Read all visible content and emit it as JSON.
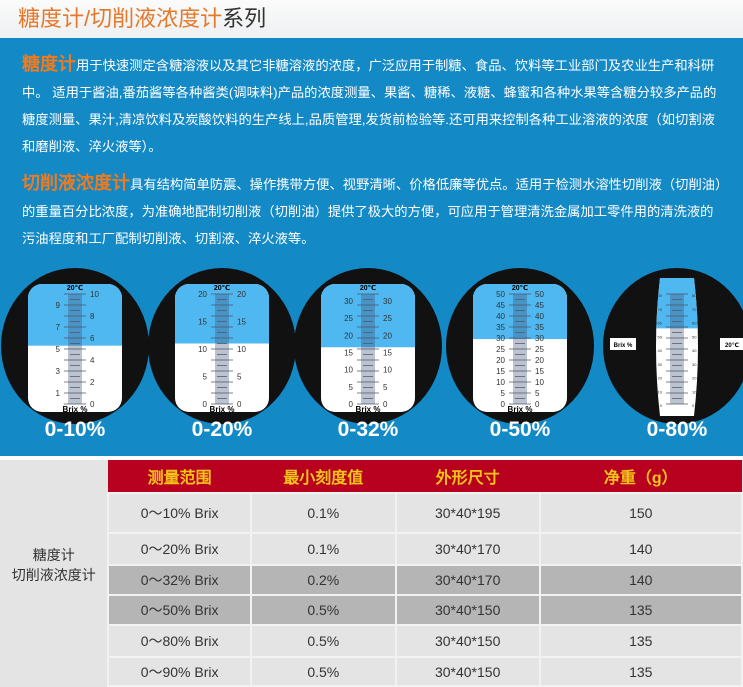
{
  "title": {
    "accent": "糖度计/切削液浓度计",
    "rest": "系列"
  },
  "intro": [
    {
      "heading": "糖度计",
      "text": "用于快速测定含糖溶液以及其它非糖溶液的浓度，广泛应用于制糖、食品、饮料等工业部门及农业生产和科研中。 适用于酱油,番茄酱等各种酱类(调味料)产品的浓度测量、果酱、糖稀、液糖、蜂蜜和各种水果等含糖分较多产品的糖度测量、果汁,清凉饮料及炭酸饮料的生产线上,品质管理,发货前检验等.还可用来控制各种工业溶液的浓度（如切割液和磨削液、淬火液等）。"
    },
    {
      "heading": "切削液浓度计",
      "text": "具有结构简单防震、操作携带方便、视野清晰、价格低廉等优点。适用于检测水溶性切削液（切削油）的重量百分比浓度，为准确地配制切削液（切削油）提供了极大的方便，可应用于管理清洗金属加工零件用的清洗液的污油程度和工厂配制切削液、切割液、淬火液等。"
    }
  ],
  "colors": {
    "blue_bg": "#1389c6",
    "accent": "#e5782a",
    "table_header": "#b8001f",
    "header_text": "#f5c518",
    "field_blue": "#4fb8f0"
  },
  "gauges": [
    {
      "range_label": "0-10%",
      "temp": "20℃",
      "unit": "Brix %",
      "max": 10,
      "left": [
        "9",
        "7",
        "5",
        "3",
        "1"
      ],
      "right": [
        "10",
        "8",
        "6",
        "4",
        "2",
        "0"
      ],
      "boundary": 5.3
    },
    {
      "range_label": "0-20%",
      "temp": "20℃",
      "unit": "Brix %",
      "max": 20,
      "left": [
        "20",
        "15",
        "10",
        "5",
        "0"
      ],
      "right": [
        "20",
        "15",
        "10",
        "5",
        "0"
      ],
      "boundary": 11
    },
    {
      "range_label": "0-32%",
      "temp": "20℃",
      "unit": "Brix %",
      "max": 32,
      "left": [
        "30",
        "25",
        "20",
        "15",
        "10",
        "5",
        "0"
      ],
      "right": [
        "30",
        "25",
        "20",
        "15",
        "10",
        "5",
        "0"
      ],
      "boundary": 16.5
    },
    {
      "range_label": "0-50%",
      "temp": "20℃",
      "unit": "Brix %",
      "max": 50,
      "left": [
        "50",
        "45",
        "40",
        "35",
        "30",
        "25",
        "20",
        "15",
        "10",
        "5",
        "0"
      ],
      "right": [
        "50",
        "45",
        "40",
        "35",
        "30",
        "25",
        "20",
        "15",
        "10",
        "5",
        "0"
      ],
      "boundary": 29.5
    },
    {
      "range_label": "0-80%",
      "temp": "20℃",
      "unit": "Brix %",
      "max": 80,
      "left": [
        "80",
        "70",
        "60",
        "50",
        "40",
        "30",
        "20",
        "10",
        "0"
      ],
      "right": [
        "80",
        "70",
        "60",
        "50",
        "40",
        "30",
        "20",
        "10",
        "0"
      ],
      "boundary": 55
    }
  ],
  "table": {
    "headers": [
      "测量范围",
      "最小刻度值",
      "外形尺寸",
      "净重（g）"
    ],
    "categories": [
      "糖度计",
      "切削液浓度计"
    ],
    "rows": [
      [
        "0～10% Brix",
        "0.1%",
        "30*40*195",
        "150"
      ],
      [
        "0～20% Brix",
        "0.1%",
        "30*40*170",
        "140"
      ],
      [
        "0～32% Brix",
        "0.2%",
        "30*40*170",
        "140"
      ],
      [
        "0～50% Brix",
        "0.5%",
        "30*40*150",
        "135"
      ],
      [
        "0～80% Brix",
        "0.5%",
        "30*40*150",
        "135"
      ],
      [
        "0～90% Brix",
        "0.5%",
        "30*40*150",
        "135"
      ]
    ]
  }
}
